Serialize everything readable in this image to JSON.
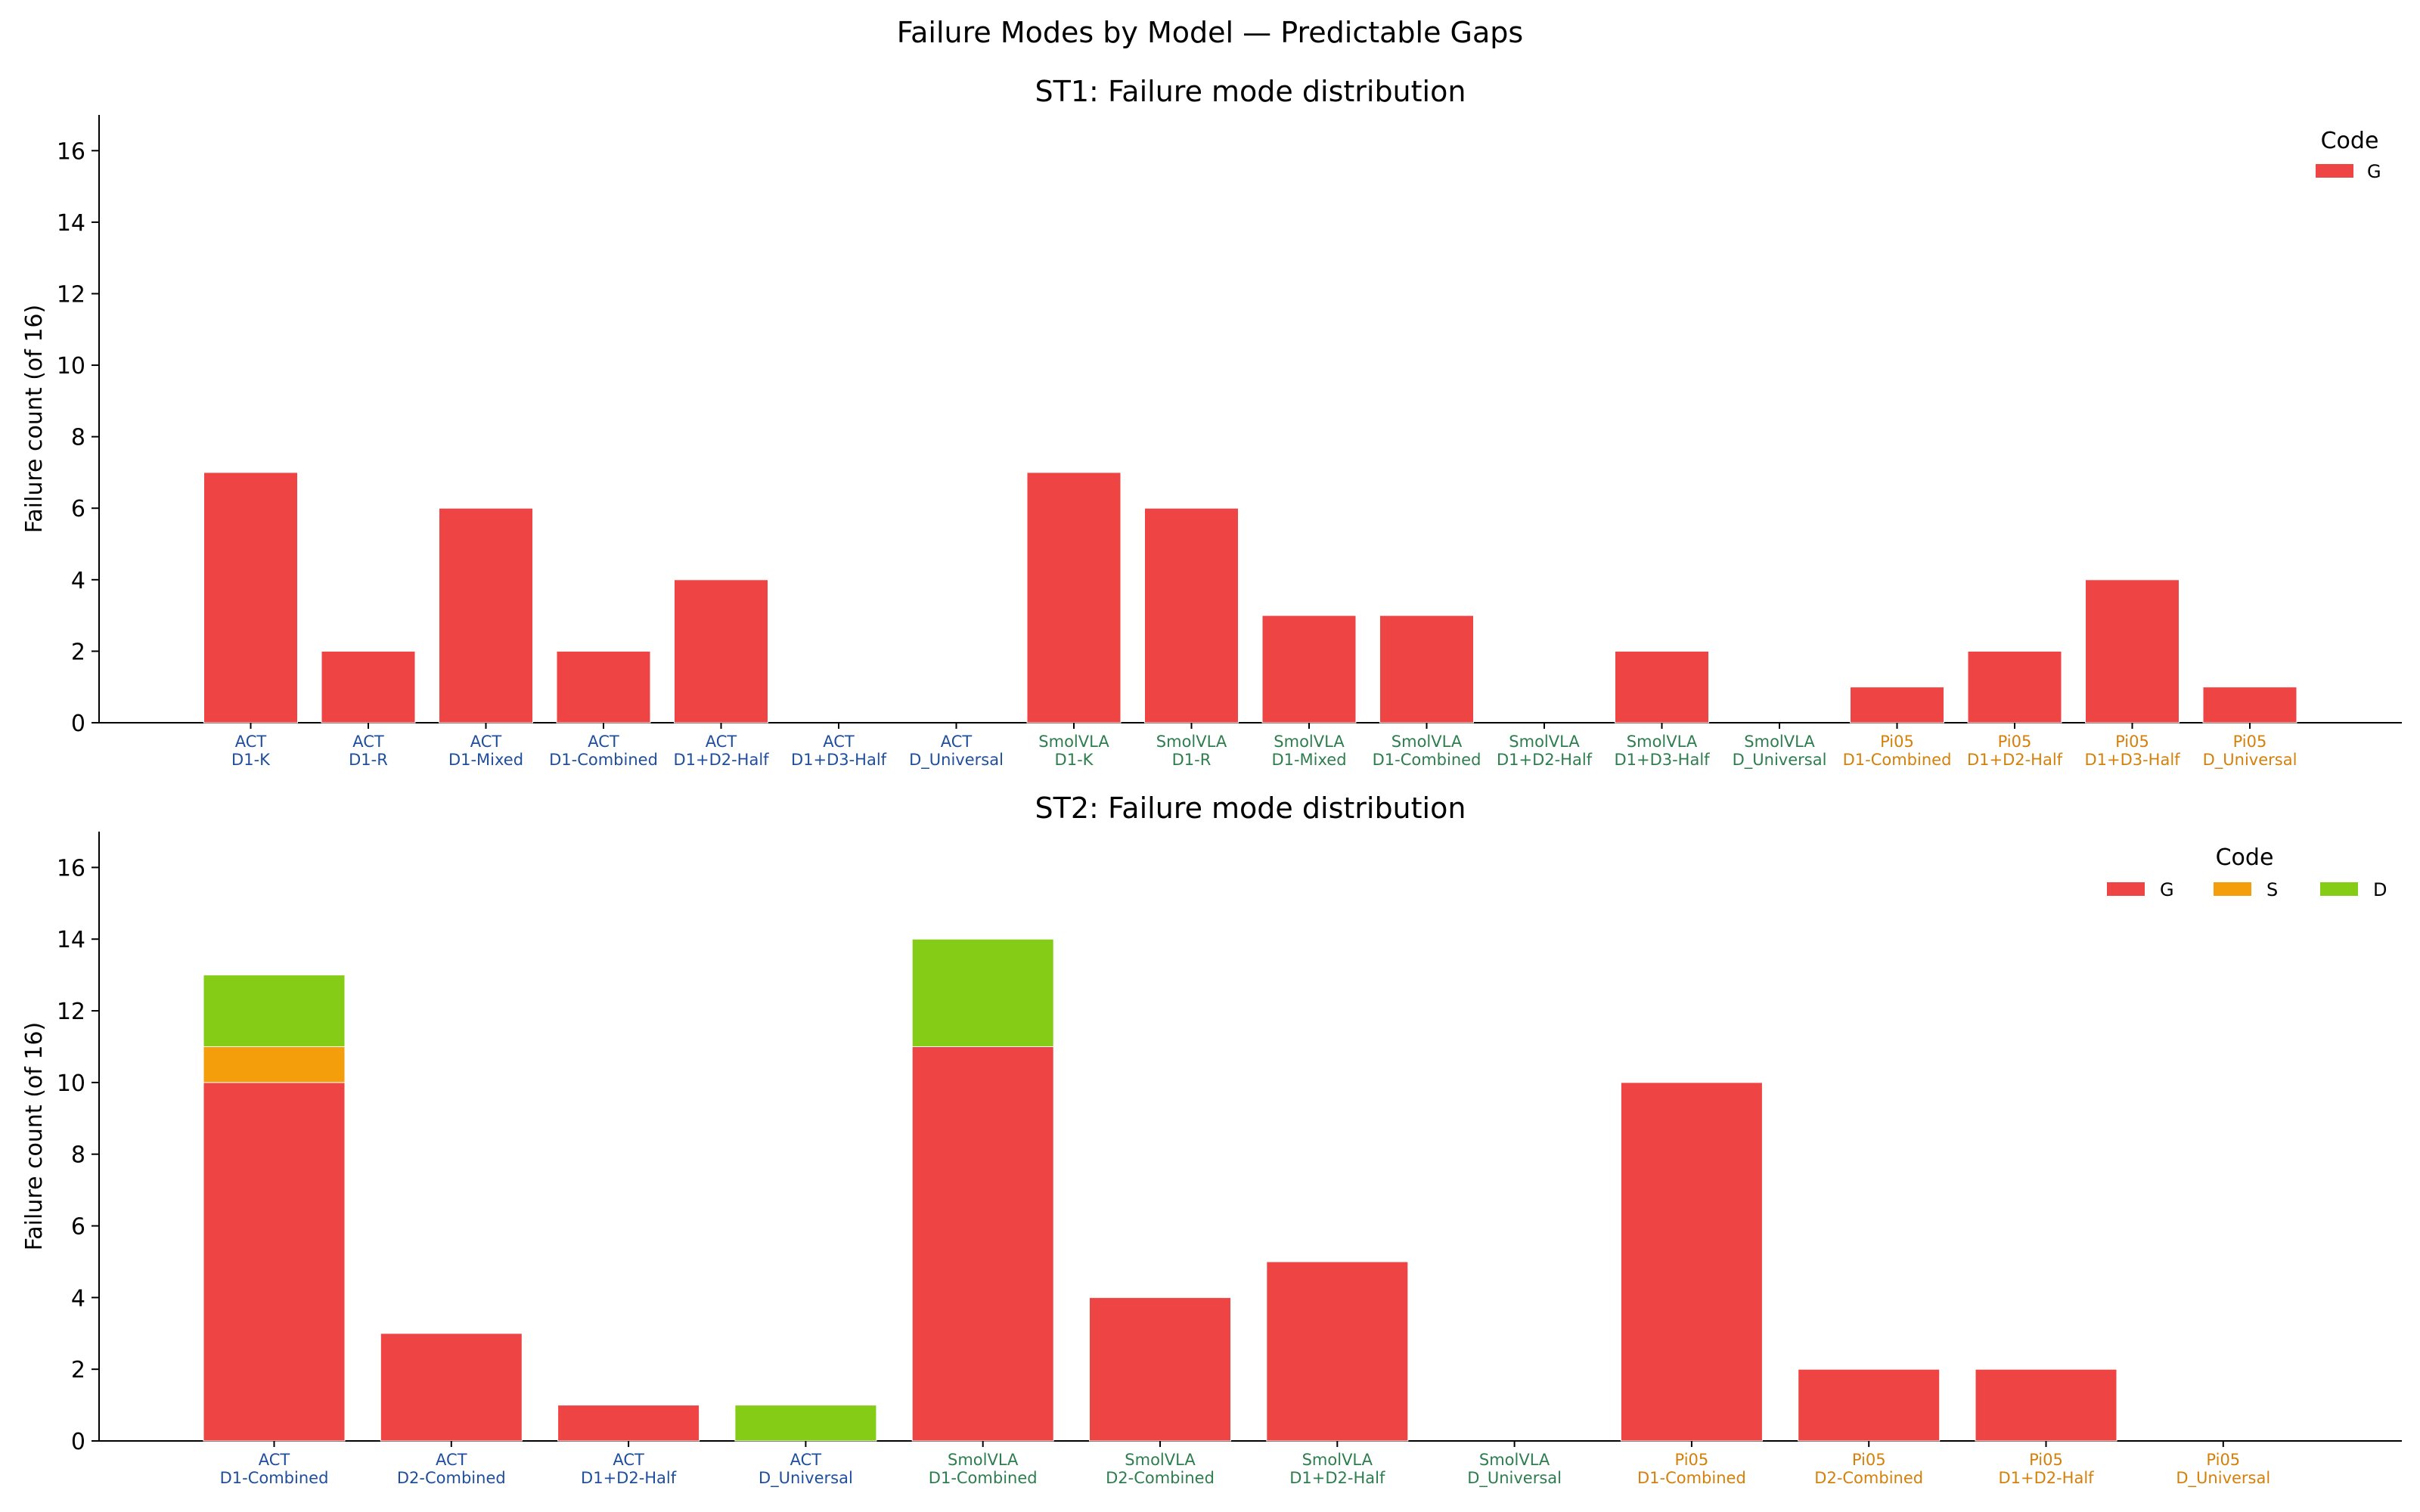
{
  "figure": {
    "suptitle": "Failure Modes by Model — Predictable Gaps"
  },
  "colors": {
    "G": "#ef4444",
    "S": "#f59e0b",
    "D": "#84cc16",
    "ACT": "#1f4e9c",
    "SmolVLA": "#2e7d4f",
    "Pi05": "#d4800a",
    "axis": "#000000"
  },
  "chart_data": [
    {
      "type": "bar",
      "stacked": true,
      "title": "ST1: Failure mode distribution",
      "ylabel": "Failure count (of 16)",
      "xlabel": "",
      "ylim": [
        0,
        17
      ],
      "yticks": [
        0,
        2,
        4,
        6,
        8,
        10,
        12,
        14,
        16
      ],
      "grid": false,
      "legend": {
        "title": "Code",
        "entries": [
          "G"
        ],
        "position": "top-right"
      },
      "categories": [
        {
          "model": "ACT",
          "label": "D1-K"
        },
        {
          "model": "ACT",
          "label": "D1-R"
        },
        {
          "model": "ACT",
          "label": "D1-Mixed"
        },
        {
          "model": "ACT",
          "label": "D1-Combined"
        },
        {
          "model": "ACT",
          "label": "D1+D2-Half"
        },
        {
          "model": "ACT",
          "label": "D1+D3-Half"
        },
        {
          "model": "ACT",
          "label": "D_Universal"
        },
        {
          "model": "SmolVLA",
          "label": "D1-K"
        },
        {
          "model": "SmolVLA",
          "label": "D1-R"
        },
        {
          "model": "SmolVLA",
          "label": "D1-Mixed"
        },
        {
          "model": "SmolVLA",
          "label": "D1-Combined"
        },
        {
          "model": "SmolVLA",
          "label": "D1+D2-Half"
        },
        {
          "model": "SmolVLA",
          "label": "D1+D3-Half"
        },
        {
          "model": "SmolVLA",
          "label": "D_Universal"
        },
        {
          "model": "Pi05",
          "label": "D1-Combined"
        },
        {
          "model": "Pi05",
          "label": "D1+D2-Half"
        },
        {
          "model": "Pi05",
          "label": "D1+D3-Half"
        },
        {
          "model": "Pi05",
          "label": "D_Universal"
        }
      ],
      "series": [
        {
          "name": "G",
          "values": [
            7,
            2,
            6,
            2,
            4,
            0,
            0,
            7,
            6,
            3,
            3,
            0,
            2,
            0,
            1,
            2,
            4,
            1
          ]
        }
      ]
    },
    {
      "type": "bar",
      "stacked": true,
      "title": "ST2: Failure mode distribution",
      "ylabel": "Failure count (of 16)",
      "xlabel": "",
      "ylim": [
        0,
        17
      ],
      "yticks": [
        0,
        2,
        4,
        6,
        8,
        10,
        12,
        14,
        16
      ],
      "grid": false,
      "legend": {
        "title": "Code",
        "entries": [
          "G",
          "S",
          "D"
        ],
        "position": "top-right"
      },
      "categories": [
        {
          "model": "ACT",
          "label": "D1-Combined"
        },
        {
          "model": "ACT",
          "label": "D2-Combined"
        },
        {
          "model": "ACT",
          "label": "D1+D2-Half"
        },
        {
          "model": "ACT",
          "label": "D_Universal"
        },
        {
          "model": "SmolVLA",
          "label": "D1-Combined"
        },
        {
          "model": "SmolVLA",
          "label": "D2-Combined"
        },
        {
          "model": "SmolVLA",
          "label": "D1+D2-Half"
        },
        {
          "model": "SmolVLA",
          "label": "D_Universal"
        },
        {
          "model": "Pi05",
          "label": "D1-Combined"
        },
        {
          "model": "Pi05",
          "label": "D2-Combined"
        },
        {
          "model": "Pi05",
          "label": "D1+D2-Half"
        },
        {
          "model": "Pi05",
          "label": "D_Universal"
        }
      ],
      "series": [
        {
          "name": "G",
          "values": [
            10,
            3,
            1,
            0,
            11,
            4,
            5,
            0,
            10,
            2,
            2,
            0
          ]
        },
        {
          "name": "S",
          "values": [
            1,
            0,
            0,
            0,
            0,
            0,
            0,
            0,
            0,
            0,
            0,
            0
          ]
        },
        {
          "name": "D",
          "values": [
            2,
            0,
            0,
            1,
            3,
            0,
            0,
            0,
            0,
            0,
            0,
            0
          ]
        }
      ]
    }
  ]
}
